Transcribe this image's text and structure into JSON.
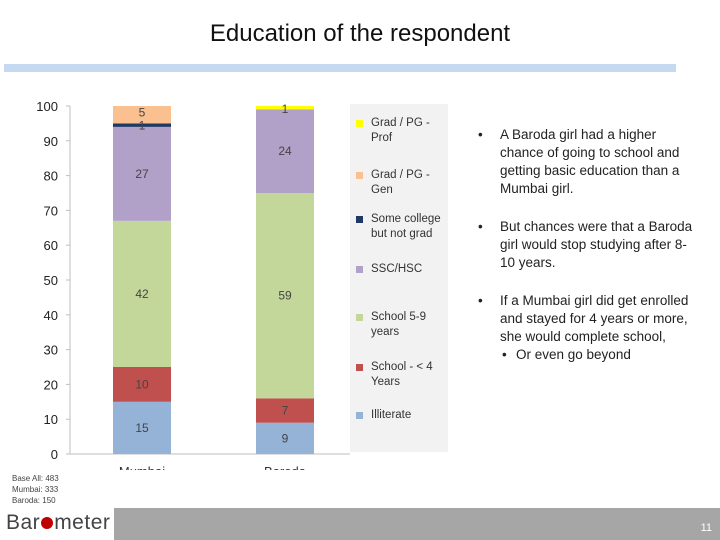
{
  "title": "Education of the respondent",
  "chart_data": {
    "type": "bar",
    "stacked": true,
    "categories": [
      "Mumbai",
      "Baroda"
    ],
    "ylim": [
      0,
      100
    ],
    "yticks": [
      "0",
      "10",
      "20",
      "30",
      "40",
      "50",
      "60",
      "70",
      "80",
      "90",
      "100"
    ],
    "grid": false,
    "legend_position": "right",
    "series": [
      {
        "name": "Illiterate",
        "color": "#95b3d7",
        "values": [
          15,
          9
        ]
      },
      {
        "name": "School - < 4 Years",
        "color": "#c0504d",
        "values": [
          10,
          7
        ]
      },
      {
        "name": "School 5-9 years",
        "color": "#c4d79b",
        "values": [
          42,
          59
        ]
      },
      {
        "name": "SSC/HSC",
        "color": "#b1a0c7",
        "values": [
          27,
          24
        ]
      },
      {
        "name": "Some college but not grad",
        "color": "#1f3864",
        "values": [
          1,
          0
        ]
      },
      {
        "name": "Grad / PG - Gen",
        "color": "#fac090",
        "values": [
          5,
          0
        ]
      },
      {
        "name": "Grad / PG - Prof",
        "color": "#ffff00",
        "values": [
          0,
          1
        ]
      }
    ],
    "data_labels": [
      [
        "15",
        "9"
      ],
      [
        "10",
        "7"
      ],
      [
        "42",
        "59"
      ],
      [
        "27",
        "24"
      ],
      [
        "1",
        ""
      ],
      [
        "5",
        ""
      ],
      [
        "",
        "1"
      ]
    ]
  },
  "bullets": [
    "A Baroda girl had a higher chance of going to school and getting basic education than a Mumbai girl.",
    "But chances were that a Baroda girl would stop studying after 8-10 years.",
    "If a Mumbai girl did get enrolled and stayed for 4 years or more, she would complete school,"
  ],
  "sub_bullet": "Or even go beyond",
  "bullet_char": "•",
  "base_note": {
    "line1": "Base All: 483",
    "line2": "Mumbai: 333",
    "line3": "Baroda: 150"
  },
  "logo_text_left": "Bar",
  "logo_text_right": "meter",
  "page_number": "11"
}
